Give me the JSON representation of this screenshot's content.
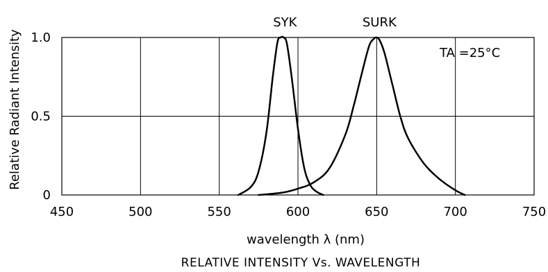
{
  "chart_data": {
    "type": "line",
    "xlabel": "wavelength λ  (nm)",
    "ylabel": "Relative Radiant Intensity",
    "caption": "RELATIVE INTENSITY Vs. WAVELENGTH",
    "annotation": "TA =25°C",
    "xlim": [
      450,
      750
    ],
    "ylim": [
      0,
      1.0
    ],
    "x_ticks": [
      450,
      500,
      550,
      600,
      650,
      700,
      750
    ],
    "x_tick_labels": [
      "450",
      "500",
      "550",
      "600",
      "650",
      "700",
      "750"
    ],
    "y_ticks": [
      0,
      0.5,
      1.0
    ],
    "y_tick_labels": [
      "0",
      "0.5",
      "1.0"
    ],
    "grid": true,
    "legend": "labels above peaks",
    "series": [
      {
        "name": "SYK",
        "peak_x": 590,
        "x": [
          562,
          570,
          575,
          580,
          584,
          587,
          589,
          591,
          593,
          596,
          600,
          604,
          608,
          612,
          616
        ],
        "y": [
          0.0,
          0.05,
          0.15,
          0.4,
          0.75,
          0.97,
          1.0,
          1.0,
          0.96,
          0.75,
          0.42,
          0.17,
          0.06,
          0.02,
          0.0
        ]
      },
      {
        "name": "SURK",
        "peak_x": 650,
        "x": [
          575,
          590,
          600,
          610,
          620,
          630,
          635,
          640,
          645,
          648,
          650,
          652,
          655,
          660,
          665,
          670,
          680,
          690,
          700,
          706
        ],
        "y": [
          0.0,
          0.015,
          0.04,
          0.08,
          0.17,
          0.38,
          0.55,
          0.75,
          0.94,
          0.99,
          1.0,
          0.98,
          0.9,
          0.7,
          0.5,
          0.36,
          0.2,
          0.1,
          0.03,
          0.0
        ]
      }
    ]
  }
}
